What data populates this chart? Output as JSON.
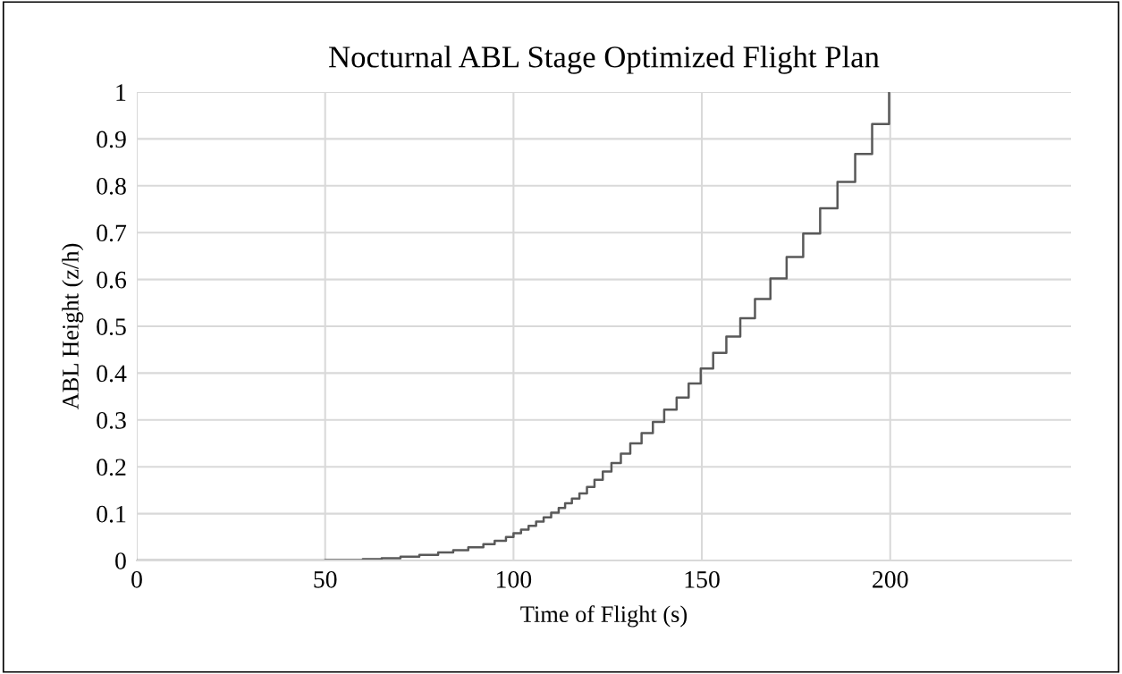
{
  "chart_data": {
    "type": "step",
    "title": "Nocturnal ABL Stage Optimized Flight Plan",
    "xlabel": "Time of Flight (s)",
    "ylabel": "ABL Height (z/h)",
    "x": [
      0,
      50,
      60,
      65,
      70,
      75,
      80,
      84,
      88,
      92,
      95,
      98,
      100,
      102,
      104,
      106,
      108,
      110,
      112,
      113.7,
      115.5,
      117.5,
      119.5,
      121.5,
      123.7,
      126,
      128.5,
      131,
      134,
      137,
      140,
      143.3,
      146.5,
      149.7,
      153,
      156.5,
      160.2,
      164.1,
      168.2,
      172.5,
      176.9,
      181.4,
      186,
      190.7,
      195.2,
      199.7
    ],
    "series": [
      {
        "color": "#595959",
        "values": [
          0,
          0.001,
          0.003,
          0.005,
          0.008,
          0.012,
          0.017,
          0.022,
          0.028,
          0.035,
          0.042,
          0.05,
          0.058,
          0.066,
          0.074,
          0.083,
          0.092,
          0.102,
          0.112,
          0.122,
          0.132,
          0.143,
          0.157,
          0.172,
          0.19,
          0.208,
          0.228,
          0.25,
          0.272,
          0.296,
          0.322,
          0.348,
          0.378,
          0.41,
          0.443,
          0.478,
          0.517,
          0.558,
          0.602,
          0.648,
          0.698,
          0.752,
          0.808,
          0.868,
          0.932,
          1.0
        ]
      }
    ],
    "xlim": [
      0,
      248
    ],
    "xticks": [
      0,
      50,
      100,
      150,
      200
    ],
    "ylim": [
      0,
      1
    ],
    "yticks": [
      0,
      0.1,
      0.2,
      0.3,
      0.4,
      0.5,
      0.6,
      0.7,
      0.8,
      0.9,
      1
    ],
    "grid": true,
    "legend": false,
    "line_style": "solid",
    "marker": "none"
  }
}
